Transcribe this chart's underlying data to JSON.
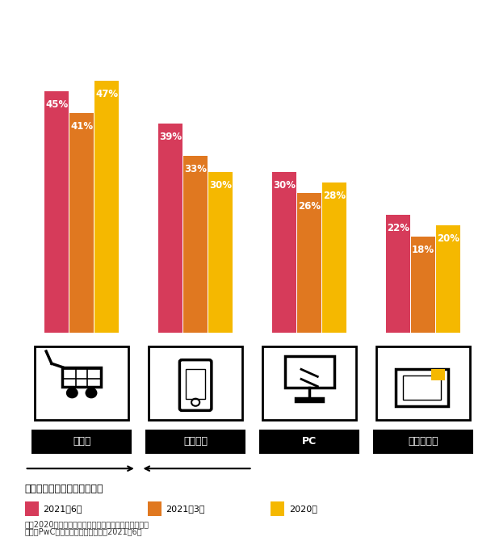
{
  "categories": [
    "実店舗",
    "モバイル",
    "PC",
    "タブレット"
  ],
  "series": {
    "2021年6月": [
      45,
      39,
      30,
      22
    ],
    "2021年3月": [
      41,
      33,
      26,
      18
    ],
    "2020年": [
      47,
      30,
      28,
      20
    ]
  },
  "colors": {
    "2021年6月": "#D63B5A",
    "2021年3月": "#E07820",
    "2020年": "#F5B800"
  },
  "legend_order": [
    "2021年6月",
    "2021年3月",
    "2020年"
  ],
  "bar_width": 0.22,
  "label_note": "縮まるモバイルと実店舗の差",
  "footnote1": "注：2020年は都市部のトレンド調査に重点を置いた。",
  "footnote2": "出所：PwC、世界の消費者意識調査2021年6月",
  "background_color": "#FFFFFF",
  "icon_box_color": "#FFFFFF",
  "icon_box_border": "#000000",
  "label_bg_color": "#000000",
  "label_text_color": "#FFFFFF",
  "arrow_left_label": "実店舗",
  "arrow_right_label": "モバイル"
}
